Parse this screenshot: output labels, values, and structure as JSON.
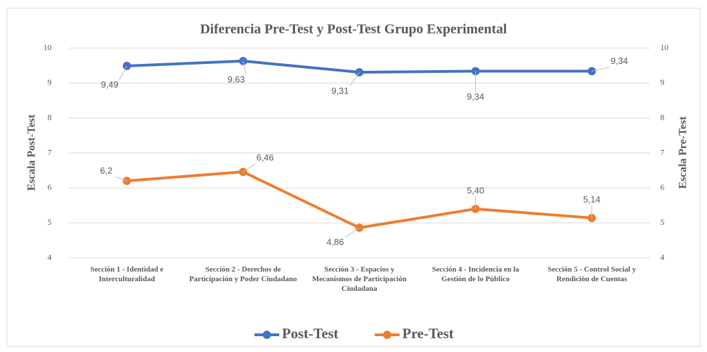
{
  "chart_data": {
    "type": "line",
    "title": "Diferencia Pre-Test y Post-Test Grupo Experimental",
    "ylabel": "Escala Post-Test",
    "y2label": "Escala Pre-Test",
    "categories": [
      "Sección 1 - Identidad e Interculturalidad",
      "Sección 2 - Derechos de Participación y Poder Ciudadano",
      "Sección 3 - Espacios y Mecanismos de Participación Ciudadana",
      "Sección 4 - Incidencia en la Gestión de lo Público",
      "Sección 5 - Control Social y Rendición de Cuentas"
    ],
    "series": [
      {
        "name": "Post-Test",
        "color": "#4472c4",
        "values": [
          9.49,
          9.63,
          9.31,
          9.34,
          9.34
        ],
        "value_labels": [
          "9,49",
          "9,63",
          "9,31",
          "9,34",
          "9,34"
        ]
      },
      {
        "name": "Pre-Test",
        "color": "#ed7d31",
        "axis": "y2",
        "values": [
          6.2,
          6.46,
          4.86,
          5.4,
          5.14
        ],
        "value_labels": [
          "6,2",
          "6,46",
          "4,86",
          "5,40",
          "5,14"
        ]
      }
    ],
    "ylim": [
      4,
      10
    ],
    "yticks": [
      4,
      5,
      6,
      7,
      8,
      9,
      10
    ],
    "y2lim": [
      4,
      10
    ],
    "y2ticks": [
      4,
      5,
      6,
      7,
      8,
      9,
      10
    ],
    "grid": true,
    "legend": "bottom"
  }
}
